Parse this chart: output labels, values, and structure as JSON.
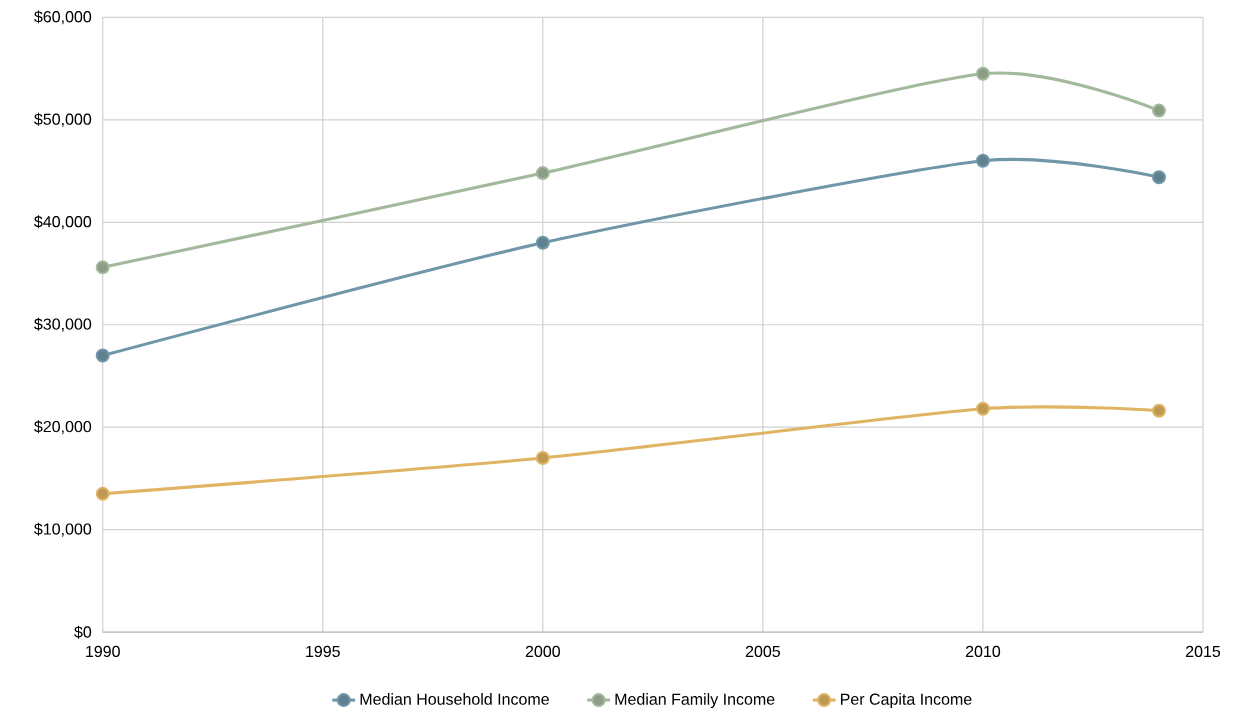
{
  "chart_data": {
    "type": "line",
    "x": [
      1990,
      2000,
      2010,
      2014
    ],
    "series": [
      {
        "name": "Median Household Income",
        "color": "#6f97a8",
        "values": [
          27000,
          38000,
          46000,
          44400
        ]
      },
      {
        "name": "Median Family Income",
        "color": "#a3b99d",
        "values": [
          35600,
          44800,
          54500,
          50900
        ]
      },
      {
        "name": "Per Capita Income",
        "color": "#e0b463",
        "values": [
          13500,
          17000,
          21800,
          21600
        ]
      }
    ],
    "xlim": [
      1990,
      2015
    ],
    "xticks": [
      1990,
      1995,
      2000,
      2005,
      2010,
      2015
    ],
    "ylim": [
      0,
      60000
    ],
    "yticks": [
      {
        "value": 0,
        "label": "$0"
      },
      {
        "value": 10000,
        "label": "$10,000"
      },
      {
        "value": 20000,
        "label": "$20,000"
      },
      {
        "value": 30000,
        "label": "$30,000"
      },
      {
        "value": 40000,
        "label": "$40,000"
      },
      {
        "value": 50000,
        "label": "$50,000"
      },
      {
        "value": 60000,
        "label": "$60,000"
      }
    ],
    "grid": true,
    "legend": "bottom",
    "marker": "circle",
    "line_style": "solid"
  }
}
